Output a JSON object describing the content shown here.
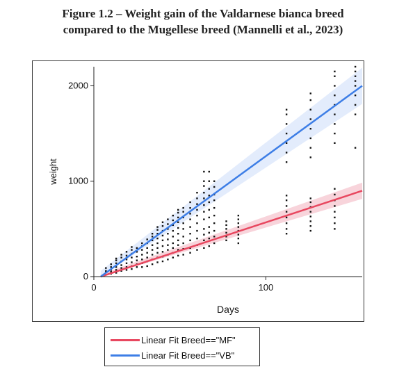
{
  "caption": {
    "line1": "Figure 1.2 – Weight gain of the Valdarnese bianca breed",
    "line2": "compared to the Mugellese breed (Mannelli et al., 2023)"
  },
  "chart_data": {
    "type": "scatter",
    "title": "",
    "xlabel": "Days",
    "ylabel": "weight",
    "xlim": [
      0,
      156
    ],
    "ylim": [
      0,
      2200
    ],
    "x_ticks": [
      0,
      100
    ],
    "y_ticks": [
      0,
      1000,
      2000
    ],
    "x_tick_labels": [
      "0",
      "100"
    ],
    "y_tick_labels": [
      "0",
      "1000",
      "2000"
    ],
    "grid": false,
    "legend_position": "below",
    "series": [
      {
        "name": "Linear Fit Breed==\"MF\"",
        "color": "#e8475f",
        "band_color": "#f6c6cf",
        "fit": {
          "x_start": 4,
          "x_end": 156,
          "y_start": 0,
          "y_end": 900
        },
        "band_halfwidth": [
          25,
          85
        ]
      },
      {
        "name": "Linear Fit Breed==\"VB\"",
        "color": "#3d7ee6",
        "band_color": "#d9e5fb",
        "fit": {
          "x_start": 4,
          "x_end": 156,
          "y_start": 0,
          "y_end": 2000
        },
        "band_halfwidth": [
          60,
          190
        ]
      }
    ],
    "points_color": "#111111",
    "points": [
      {
        "x": 7,
        "y": [
          20,
          45,
          60,
          90
        ]
      },
      {
        "x": 10,
        "y": [
          30,
          50,
          70,
          100,
          130
        ]
      },
      {
        "x": 13,
        "y": [
          40,
          70,
          100,
          140,
          170,
          190
        ]
      },
      {
        "x": 16,
        "y": [
          60,
          90,
          120,
          160,
          200,
          230
        ]
      },
      {
        "x": 19,
        "y": [
          70,
          100,
          140,
          180,
          220,
          260
        ]
      },
      {
        "x": 22,
        "y": [
          80,
          110,
          150,
          200,
          240,
          280,
          310
        ]
      },
      {
        "x": 25,
        "y": [
          100,
          130,
          170,
          210,
          260,
          300
        ]
      },
      {
        "x": 28,
        "y": [
          100,
          140,
          180,
          230,
          280,
          320,
          350
        ]
      },
      {
        "x": 31,
        "y": [
          110,
          160,
          200,
          250,
          300,
          350,
          390
        ]
      },
      {
        "x": 34,
        "y": [
          130,
          180,
          230,
          280,
          330,
          380,
          420,
          450
        ]
      },
      {
        "x": 37,
        "y": [
          150,
          200,
          250,
          300,
          350,
          400,
          450,
          490,
          520
        ]
      },
      {
        "x": 40,
        "y": [
          160,
          210,
          260,
          320,
          380,
          430,
          480,
          530,
          570
        ]
      },
      {
        "x": 43,
        "y": [
          180,
          230,
          280,
          330,
          390,
          450,
          500,
          550,
          600
        ]
      },
      {
        "x": 46,
        "y": [
          200,
          250,
          300,
          350,
          420,
          480,
          540,
          590,
          640
        ]
      },
      {
        "x": 49,
        "y": [
          220,
          280,
          330,
          380,
          450,
          510,
          570,
          620,
          670,
          700
        ]
      },
      {
        "x": 52,
        "y": [
          230,
          290,
          350,
          420,
          500,
          560,
          620,
          680,
          720
        ]
      },
      {
        "x": 56,
        "y": [
          250,
          300,
          380,
          450,
          520,
          600,
          660,
          720,
          780
        ]
      },
      {
        "x": 60,
        "y": [
          280,
          330,
          400,
          480,
          560,
          640,
          700,
          760,
          820,
          880
        ]
      },
      {
        "x": 64,
        "y": [
          300,
          380,
          440,
          500,
          600,
          680,
          750,
          820,
          880,
          950,
          1000,
          1100
        ]
      },
      {
        "x": 67,
        "y": [
          320,
          400,
          460,
          520,
          620,
          700,
          780,
          850,
          920,
          1000,
          1100
        ]
      },
      {
        "x": 70,
        "y": [
          350,
          420,
          480,
          560,
          640,
          720,
          800,
          860,
          940,
          1000
        ]
      },
      {
        "x": 77,
        "y": [
          380,
          420,
          460,
          500,
          540,
          580
        ]
      },
      {
        "x": 84,
        "y": [
          350,
          400,
          440,
          480,
          520,
          560,
          600,
          640
        ]
      },
      {
        "x": 112,
        "y": [
          450,
          500,
          560,
          620,
          680,
          740,
          800,
          850,
          1200,
          1300,
          1400,
          1500,
          1600,
          1700,
          1750
        ]
      },
      {
        "x": 126,
        "y": [
          480,
          530,
          580,
          630,
          680,
          730,
          780,
          820,
          1250,
          1350,
          1450,
          1550,
          1650,
          1750,
          1850,
          1920
        ]
      },
      {
        "x": 140,
        "y": [
          500,
          560,
          620,
          680,
          740,
          800,
          860,
          920,
          1400,
          1500,
          1600,
          1700,
          1800,
          1900,
          2000,
          2100,
          2150
        ]
      },
      {
        "x": 152,
        "y": [
          1350,
          1700,
          1800,
          1900,
          2000,
          2050,
          2100,
          2150,
          2200
        ]
      }
    ]
  }
}
